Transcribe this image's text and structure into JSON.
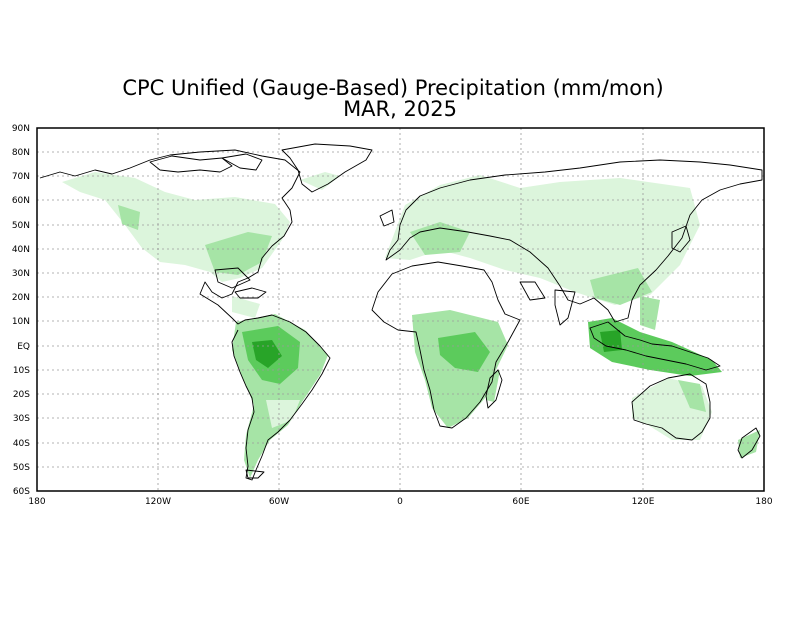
{
  "map": {
    "title": "CPC Unified (Gauge-Based) Precipitation (mm/mon)",
    "subtitle": "MAR, 2025",
    "lat_labels": [
      "90N",
      "80N",
      "70N",
      "60N",
      "50N",
      "40N",
      "30N",
      "20N",
      "10N",
      "EQ",
      "10S",
      "20S",
      "30S",
      "40S",
      "50S",
      "60S"
    ],
    "lon_labels": [
      "180",
      "120W",
      "60W",
      "0",
      "60E",
      "120E",
      "180"
    ],
    "colors": {
      "frame": "#000000",
      "grid": "#9a9a9a",
      "precip_light": "#dcf5dc",
      "precip_mid": "#a6e4a6",
      "precip_high": "#5ccb5c",
      "precip_max": "#28a428"
    }
  }
}
